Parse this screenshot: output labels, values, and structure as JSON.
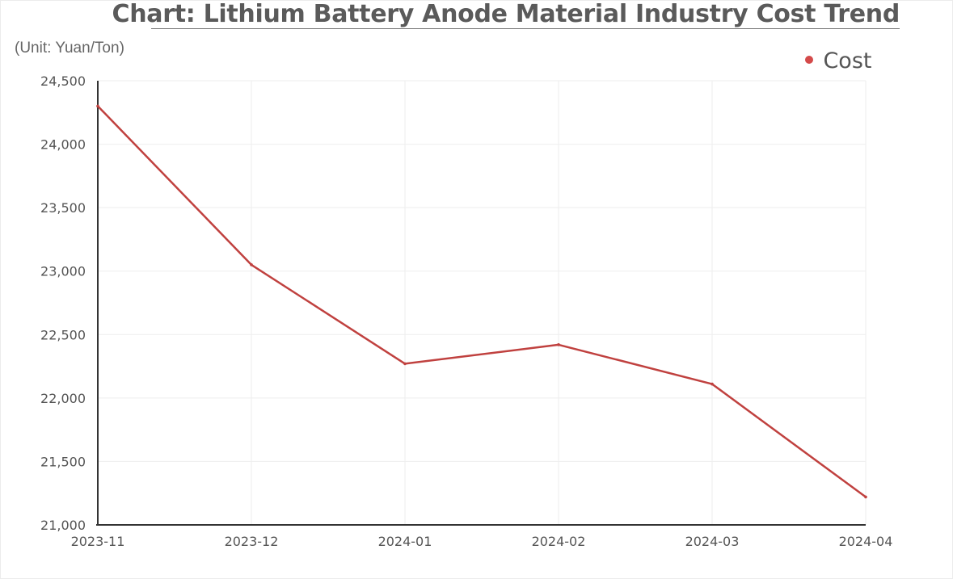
{
  "chart_data": {
    "type": "line",
    "title": "Chart: Lithium Battery Anode Material Industry Cost Trend",
    "unit_label": "(Unit: Yuan/Ton)",
    "categories": [
      "2023-11",
      "2023-12",
      "2024-01",
      "2024-02",
      "2024-03",
      "2024-04"
    ],
    "series": [
      {
        "name": "Cost",
        "values": [
          24300,
          23050,
          22270,
          22420,
          22110,
          21220
        ]
      }
    ],
    "ylim": [
      21000,
      24500
    ],
    "yticks": [
      21000,
      21500,
      22000,
      22500,
      23000,
      23500,
      24000,
      24500
    ],
    "ytick_labels": [
      "21,000",
      "21,500",
      "22,000",
      "22,500",
      "23,000",
      "23,500",
      "24,000",
      "24,500"
    ],
    "grid": true,
    "legend_position": "top-right",
    "colors": {
      "series": "#c0413f",
      "axis": "#333333",
      "grid": "#eeeeee"
    }
  }
}
